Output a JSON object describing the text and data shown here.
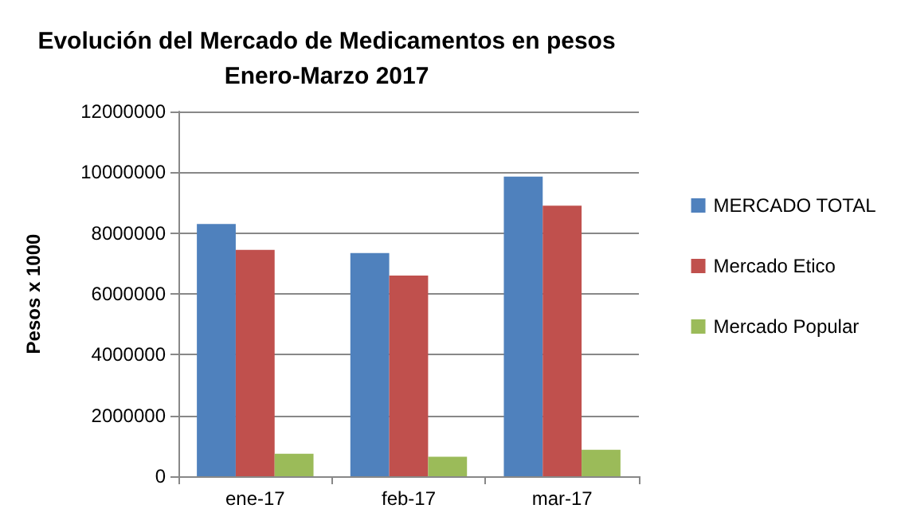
{
  "chart_data": {
    "type": "bar",
    "title": "Evolución del Mercado de Medicamentos en pesos\nEnero-Marzo 2017",
    "ylabel": "Pesos x 1000",
    "categories": [
      "ene-17",
      "feb-17",
      "mar-17"
    ],
    "series": [
      {
        "name": "MERCADO TOTAL",
        "color": "#4f81bd",
        "values": [
          8300000,
          7340000,
          9860000
        ]
      },
      {
        "name": "Mercado Etico",
        "color": "#c0504d",
        "values": [
          7450000,
          6600000,
          8900000
        ]
      },
      {
        "name": "Mercado Popular",
        "color": "#9bbb59",
        "values": [
          740000,
          640000,
          870000
        ]
      }
    ],
    "ylim": [
      0,
      12000000
    ],
    "yticks": [
      0,
      2000000,
      4000000,
      6000000,
      8000000,
      10000000,
      12000000
    ],
    "grid": "y",
    "legend": "right"
  }
}
